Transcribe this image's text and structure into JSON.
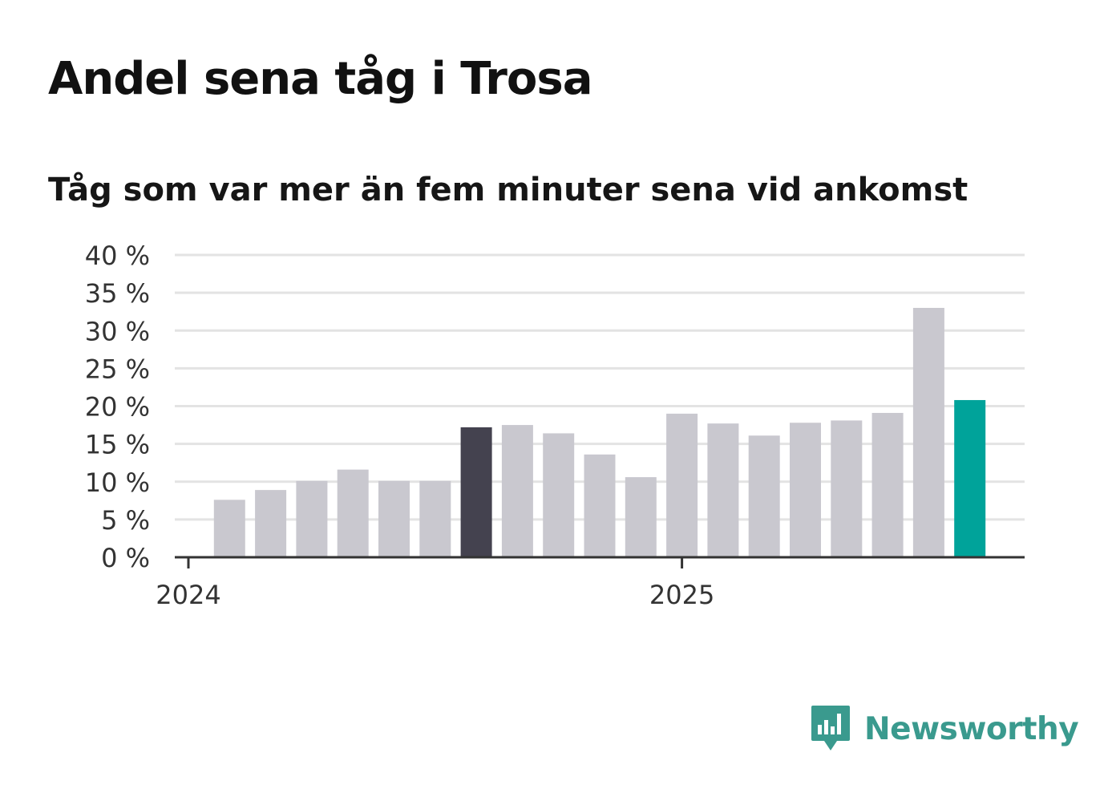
{
  "colors": {
    "bar_default": "#c9c8cf",
    "bar_highlight_dark": "#44424f",
    "bar_highlight_latest": "#00a39a",
    "grid": "#e3e3e3",
    "axis": "#333333",
    "logo": "#3a9a8e"
  },
  "brand": {
    "name": "Newsworthy",
    "icon": "bar-chart-speech-bubble-icon"
  },
  "chart_data": {
    "type": "bar",
    "title": "Andel sena tåg i Trosa",
    "subtitle": "Tåg som var mer än fem minuter sena vid ankomst",
    "xlabel": "",
    "ylabel": "",
    "ylim": [
      0,
      40
    ],
    "yticks": [
      0,
      5,
      10,
      15,
      20,
      25,
      30,
      35,
      40
    ],
    "ytick_suffix": " %",
    "year_labels": [
      {
        "label": "2024",
        "date": "2024-01"
      },
      {
        "label": "2025",
        "date": "2025-01"
      }
    ],
    "categories": [
      "2024-02",
      "2024-03",
      "2024-04",
      "2024-05",
      "2024-06",
      "2024-07",
      "2024-08",
      "2024-09",
      "2024-10",
      "2024-11",
      "2024-12",
      "2025-01",
      "2025-02",
      "2025-03",
      "2025-04",
      "2025-05",
      "2025-06",
      "2025-07",
      "2025-08"
    ],
    "values": [
      7.6,
      8.9,
      10.1,
      11.6,
      10.1,
      10.1,
      17.2,
      17.5,
      16.4,
      13.6,
      10.6,
      19.0,
      17.7,
      16.1,
      17.8,
      18.1,
      19.1,
      33.0,
      20.8
    ],
    "highlight": {
      "2024-08": "bar_highlight_dark",
      "2025-08": "bar_highlight_latest"
    },
    "grid": true,
    "legend": "none"
  }
}
